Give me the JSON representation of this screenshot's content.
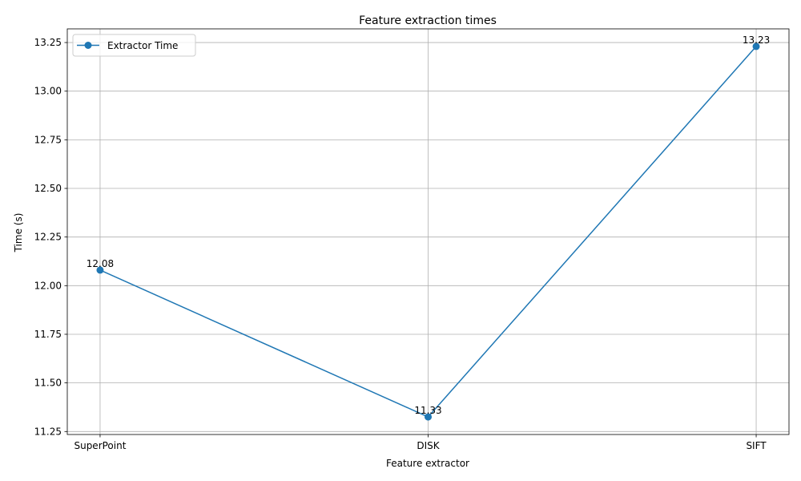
{
  "chart_data": {
    "type": "line",
    "title": "Feature extraction times",
    "xlabel": "Feature extractor",
    "ylabel": "Time (s)",
    "categories": [
      "SuperPoint",
      "DISK",
      "SIFT"
    ],
    "series": [
      {
        "name": "Extractor Time",
        "values": [
          12.08,
          11.325,
          13.23
        ],
        "labels": [
          "12.08",
          "11.33",
          "13.23"
        ],
        "color": "#1f77b4",
        "marker": "circle"
      }
    ],
    "ylim": [
      11.2347,
      13.3203
    ],
    "yticks": [
      11.25,
      11.5,
      11.75,
      12.0,
      12.25,
      12.5,
      12.75,
      13.0,
      13.25
    ],
    "ytick_labels": [
      "11.25",
      "11.50",
      "11.75",
      "12.00",
      "12.25",
      "12.50",
      "12.75",
      "13.00",
      "13.25"
    ],
    "grid": true,
    "legend_position": "upper left"
  }
}
